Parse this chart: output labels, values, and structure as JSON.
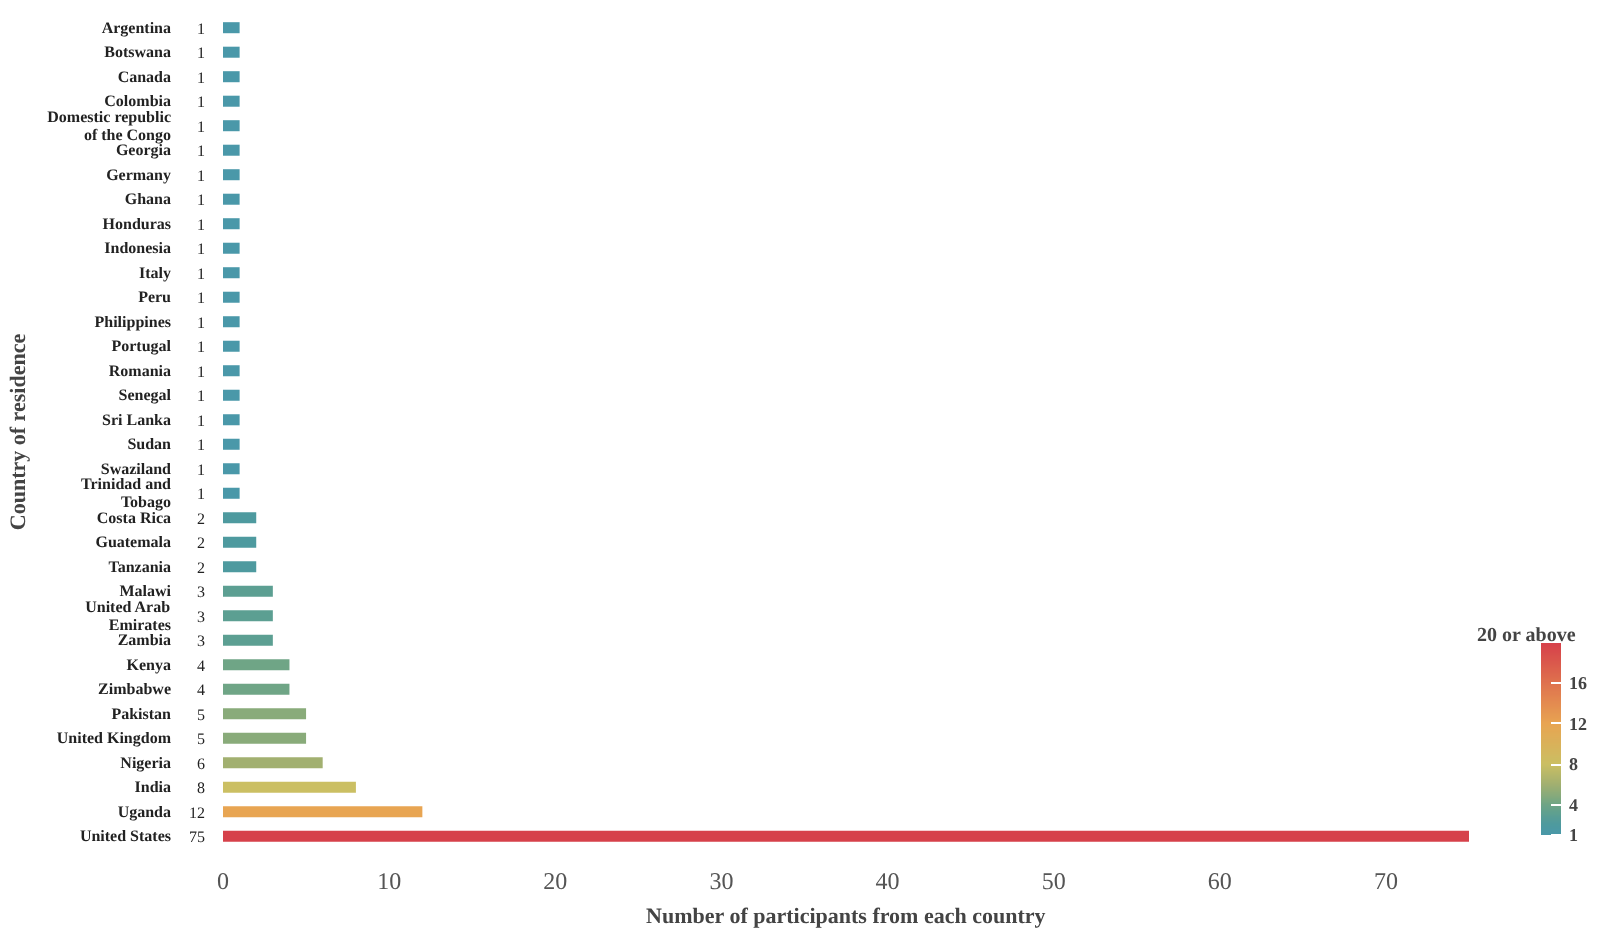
{
  "chart_data": {
    "type": "bar",
    "orientation": "horizontal",
    "xlabel": "Number of participants from each country",
    "ylabel": "Country of residence",
    "categories": [
      "Argentina",
      "Botswana",
      "Canada",
      "Colombia",
      "Domestic republic of the Congo",
      "Georgia",
      "Germany",
      "Ghana",
      "Honduras",
      "Indonesia",
      "Italy",
      "Peru",
      "Philippines",
      "Portugal",
      "Romania",
      "Senegal",
      "Sri Lanka",
      "Sudan",
      "Swaziland",
      "Trinidad and Tobago",
      "Costa Rica",
      "Guatemala",
      "Tanzania",
      "Malawi",
      "United Arab Emirates",
      "Zambia",
      "Kenya",
      "Zimbabwe",
      "Pakistan",
      "United Kingdom",
      "Nigeria",
      "India",
      "Uganda",
      "United States"
    ],
    "values": [
      1,
      1,
      1,
      1,
      1,
      1,
      1,
      1,
      1,
      1,
      1,
      1,
      1,
      1,
      1,
      1,
      1,
      1,
      1,
      1,
      2,
      2,
      2,
      3,
      3,
      3,
      4,
      4,
      5,
      5,
      6,
      8,
      12,
      75
    ],
    "colors": [
      "#4a98a9",
      "#4a98a9",
      "#4a98a9",
      "#4a98a9",
      "#4a98a9",
      "#4a98a9",
      "#4a98a9",
      "#4a98a9",
      "#4a98a9",
      "#4a98a9",
      "#4a98a9",
      "#4a98a9",
      "#4a98a9",
      "#4a98a9",
      "#4a98a9",
      "#4a98a9",
      "#4a98a9",
      "#4a98a9",
      "#4a98a9",
      "#4a98a9",
      "#4e9a9f",
      "#4e9a9f",
      "#4e9a9f",
      "#5c9f92",
      "#5c9f92",
      "#5c9f92",
      "#6fa586",
      "#6fa586",
      "#89ab7a",
      "#89ab7a",
      "#a2b070",
      "#cbbf63",
      "#e8a552",
      "#d6414a"
    ],
    "data_labels": true,
    "xlim": [
      0,
      75
    ],
    "xticks": [
      0,
      10,
      20,
      30,
      40,
      50,
      60,
      70
    ],
    "clabel": "20 or above",
    "clim": [
      1,
      20
    ],
    "cticks": [
      1,
      4,
      8,
      12,
      16
    ]
  }
}
